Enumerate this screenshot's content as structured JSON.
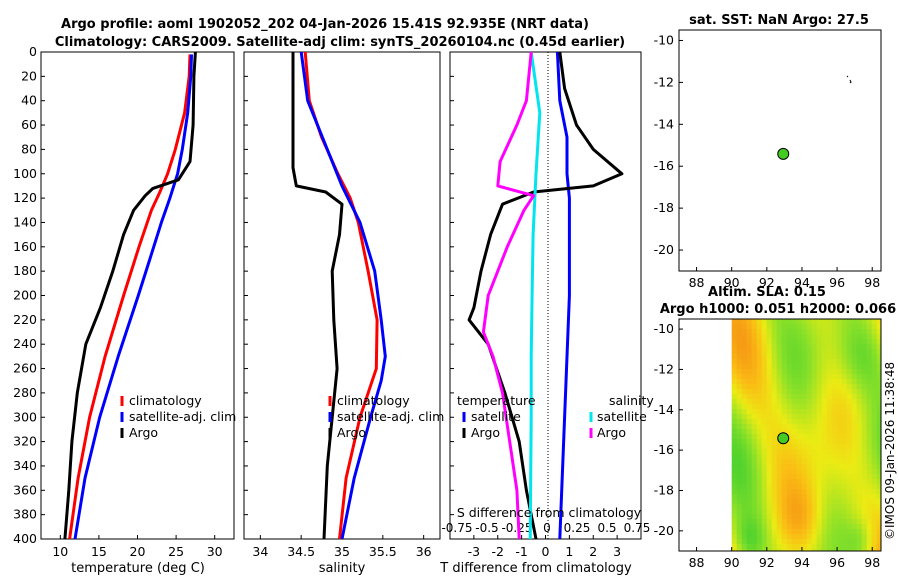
{
  "figure": {
    "title_line1": "Argo profile: aoml 1902052_202 04-Jan-2026 15.41S 92.935E (NRT data)",
    "title_line2": "Climatology: CARS2009. Satellite-adj clim: synTS_20260104.nc (0.45d earlier)",
    "watermark": "©IMOS 09-Jan-2026 11:38:48"
  },
  "colors": {
    "climatology": "#ff0000",
    "satellite_adj": "#0000ff",
    "argo": "#000000",
    "salinity_satellite": "#00e5ee",
    "salinity_argo": "#ff00ff",
    "argo_marker": "#44cc22"
  },
  "chart_data": [
    {
      "id": "temperature",
      "type": "line",
      "xlabel": "temperature (deg C)",
      "ylabel": "",
      "xlim": [
        7.5,
        32.5
      ],
      "ylim": [
        400,
        0
      ],
      "xticks": [
        10,
        15,
        20,
        25,
        30
      ],
      "yticks": [
        0,
        20,
        40,
        60,
        80,
        100,
        120,
        140,
        160,
        180,
        200,
        220,
        240,
        260,
        280,
        300,
        320,
        340,
        360,
        380,
        400
      ],
      "legend": [
        "climatology",
        "satellite-adj. clim",
        "Argo"
      ],
      "legend_location": "lower-right",
      "series": [
        {
          "name": "climatology",
          "color": "#ff0000",
          "depth": [
            2,
            20,
            50,
            80,
            100,
            115,
            130,
            160,
            200,
            250,
            300,
            350,
            400
          ],
          "values": [
            26.8,
            26.7,
            26.1,
            24.9,
            23.9,
            22.9,
            21.8,
            20.2,
            18.2,
            15.8,
            13.8,
            12.3,
            11.2
          ]
        },
        {
          "name": "satellite-adj. clim",
          "color": "#0000ff",
          "depth": [
            2,
            20,
            50,
            80,
            100,
            120,
            140,
            170,
            200,
            250,
            300,
            350,
            400
          ],
          "values": [
            27.0,
            26.9,
            26.5,
            25.8,
            25.2,
            24.2,
            23.1,
            21.6,
            20.1,
            17.5,
            15.1,
            13.2,
            11.9
          ]
        },
        {
          "name": "Argo",
          "color": "#000000",
          "depth": [
            0,
            20,
            60,
            90,
            105,
            112,
            118,
            130,
            150,
            180,
            210,
            240,
            280,
            320,
            360,
            400
          ],
          "values": [
            27.5,
            27.3,
            27.2,
            26.8,
            25.3,
            22.0,
            21.0,
            19.5,
            18.2,
            16.8,
            15.2,
            13.3,
            12.2,
            11.5,
            11.1,
            10.6
          ]
        }
      ]
    },
    {
      "id": "salinity",
      "type": "line",
      "xlabel": "salinity",
      "ylabel": "",
      "xlim": [
        33.8,
        36.2
      ],
      "ylim": [
        400,
        0
      ],
      "xticks": [
        34,
        34.5,
        35,
        35.5,
        36
      ],
      "legend": [
        "climatology",
        "satellite-adj. clim",
        "Argo"
      ],
      "legend_location": "lower-right",
      "series": [
        {
          "name": "climatology",
          "color": "#ff0000",
          "depth": [
            0,
            40,
            70,
            100,
            120,
            140,
            180,
            220,
            260,
            300,
            350,
            400
          ],
          "values": [
            34.55,
            34.6,
            34.75,
            34.95,
            35.1,
            35.2,
            35.32,
            35.43,
            35.42,
            35.22,
            35.05,
            34.97
          ]
        },
        {
          "name": "satellite-adj. clim",
          "color": "#0000ff",
          "depth": [
            0,
            40,
            80,
            110,
            140,
            180,
            220,
            250,
            270,
            300,
            350,
            400
          ],
          "values": [
            34.5,
            34.58,
            34.82,
            35.0,
            35.22,
            35.4,
            35.48,
            35.53,
            35.48,
            35.35,
            35.15,
            35.0
          ]
        },
        {
          "name": "Argo",
          "color": "#000000",
          "depth": [
            0,
            95,
            110,
            115,
            125,
            150,
            180,
            220,
            260,
            300,
            340,
            400
          ],
          "values": [
            34.4,
            34.4,
            34.44,
            34.8,
            35.0,
            34.97,
            34.88,
            34.9,
            34.94,
            34.88,
            34.82,
            34.78
          ]
        }
      ]
    },
    {
      "id": "difference",
      "type": "line",
      "xlabel": "T difference from climatology",
      "xlabel_top": "S difference from climatology",
      "xlim": [
        -4,
        4
      ],
      "ylim": [
        400,
        0
      ],
      "xticks": [
        -3,
        -2,
        -1,
        0,
        1,
        2,
        3
      ],
      "xticks_top": [
        "-0.75",
        "-0.5",
        "-0.25",
        "0",
        "0.25",
        "0.5",
        "0.75"
      ],
      "legend_temperature_title": "temperature",
      "legend_salinity_title": "salinity",
      "legend_temperature": [
        "satellite",
        "Argo"
      ],
      "legend_salinity": [
        "satellite",
        "Argo"
      ],
      "legend_location": "lower-left and lower-right",
      "series": [
        {
          "name": "T satellite",
          "color": "#0000ff",
          "depth": [
            0,
            40,
            70,
            100,
            120,
            200,
            300,
            400
          ],
          "values": [
            0.5,
            0.6,
            0.9,
            0.9,
            1.0,
            1.0,
            0.8,
            0.6
          ]
        },
        {
          "name": "T Argo",
          "color": "#000000",
          "depth": [
            0,
            30,
            60,
            80,
            100,
            110,
            115,
            125,
            150,
            180,
            210,
            220,
            240,
            280,
            320,
            360,
            400
          ],
          "values": [
            0.6,
            0.8,
            1.3,
            2.0,
            3.2,
            2.0,
            -0.5,
            -1.8,
            -2.3,
            -2.7,
            -3.0,
            -3.2,
            -2.4,
            -1.7,
            -1.1,
            -0.8,
            -0.4
          ]
        },
        {
          "name": "S satellite",
          "color": "#00e5ee",
          "depth": [
            0,
            50,
            100,
            150,
            200,
            250,
            300,
            400
          ],
          "values": [
            -0.6,
            -0.24,
            -0.4,
            -0.52,
            -0.56,
            -0.6,
            -0.6,
            -0.64
          ]
        },
        {
          "name": "S Argo",
          "color": "#ff00ff",
          "depth": [
            0,
            40,
            60,
            90,
            110,
            118,
            130,
            160,
            200,
            230,
            250,
            280,
            320,
            360,
            400
          ],
          "values": [
            -0.6,
            -0.8,
            -1.2,
            -1.9,
            -2.0,
            -0.5,
            -0.9,
            -1.6,
            -2.4,
            -2.6,
            -2.2,
            -1.8,
            -1.5,
            -1.2,
            -1.1
          ]
        }
      ]
    },
    {
      "id": "sst_map",
      "type": "scatter",
      "title": "sat. SST: NaN Argo: 27.5",
      "xlim": [
        87,
        98.5
      ],
      "ylim": [
        -9.5,
        -21
      ],
      "xticks": [
        88,
        90,
        92,
        94,
        96,
        98
      ],
      "yticks": [
        -10,
        -12,
        -14,
        -16,
        -18,
        -20
      ],
      "points": [
        {
          "lon": 92.935,
          "lat": -15.41,
          "label": "Argo"
        }
      ]
    },
    {
      "id": "sla_map",
      "type": "heatmap",
      "title_line1": "Altim. SLA: 0.15",
      "title_line2": "Argo h1000: 0.051 h2000: 0.066",
      "xlim": [
        87,
        98.5
      ],
      "ylim": [
        -9.5,
        -21
      ],
      "xticks": [
        88,
        90,
        92,
        94,
        96,
        98
      ],
      "yticks": [
        -10,
        -12,
        -14,
        -16,
        -18,
        -20
      ],
      "field_extent_lon": [
        90,
        98.5
      ],
      "points": [
        {
          "lon": 92.935,
          "lat": -15.41,
          "label": "Argo"
        }
      ]
    }
  ]
}
